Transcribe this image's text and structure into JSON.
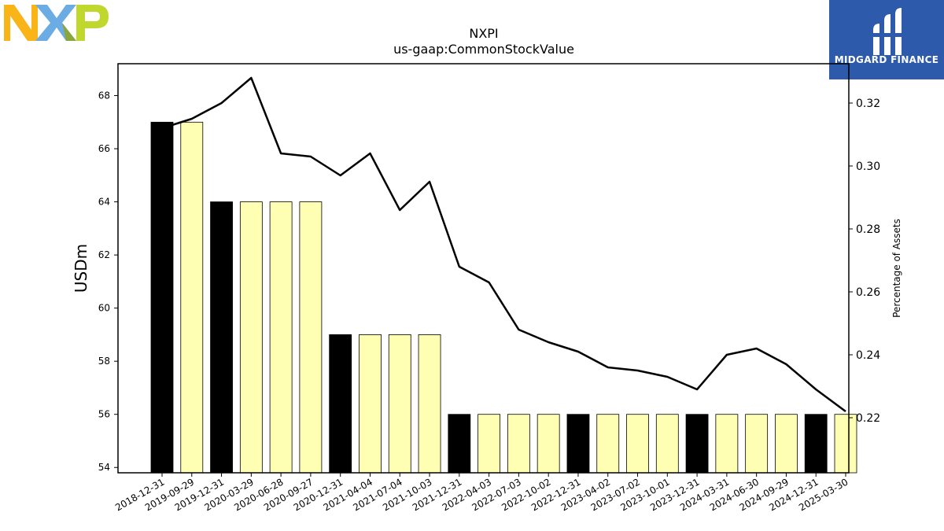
{
  "chart_data": {
    "type": "bar",
    "title": "NXPI",
    "subtitle": "us-gaap:CommonStockValue",
    "ylabel": "USDm",
    "y2label": "Percentage of Assets",
    "ylim": [
      53.8,
      69.2
    ],
    "y2lim": [
      0.2025,
      0.3325
    ],
    "yticks": [
      54,
      56,
      58,
      60,
      62,
      64,
      66,
      68
    ],
    "y2ticks": [
      0.22,
      0.24,
      0.26,
      0.28,
      0.3,
      0.32
    ],
    "categories": [
      "2018-12-31",
      "2019-09-29",
      "2019-12-31",
      "2020-03-29",
      "2020-06-28",
      "2020-09-27",
      "2020-12-31",
      "2021-04-04",
      "2021-07-04",
      "2021-10-03",
      "2021-12-31",
      "2022-04-03",
      "2022-07-03",
      "2022-10-02",
      "2022-12-31",
      "2023-04-02",
      "2023-07-02",
      "2023-10-01",
      "2023-12-31",
      "2024-03-31",
      "2024-06-30",
      "2024-09-29",
      "2024-12-31",
      "2025-03-30"
    ],
    "series": [
      {
        "kind": "bar",
        "values": [
          67,
          67,
          64,
          64,
          64,
          64,
          59,
          59,
          59,
          59,
          56,
          56,
          56,
          56,
          56,
          56,
          56,
          56,
          56,
          56,
          56,
          56,
          56,
          56
        ],
        "annual": [
          true,
          false,
          true,
          false,
          false,
          false,
          true,
          false,
          false,
          false,
          true,
          false,
          false,
          false,
          true,
          false,
          false,
          false,
          true,
          false,
          false,
          false,
          true,
          false
        ]
      },
      {
        "kind": "line",
        "axis": "right",
        "values": [
          0.312,
          0.315,
          0.32,
          0.328,
          0.304,
          0.303,
          0.297,
          0.304,
          0.286,
          0.295,
          0.268,
          0.263,
          0.248,
          0.244,
          0.241,
          0.236,
          0.235,
          0.233,
          0.229,
          0.24,
          0.242,
          0.237,
          0.229,
          0.222
        ]
      }
    ],
    "colors": {
      "annual_bar": "#000000",
      "quarter_bar": "#ffffb3",
      "line": "#000000"
    },
    "grid": false,
    "legend": "none"
  },
  "logos": {
    "left": {
      "name": "nxp-logo",
      "text": "NXP",
      "colors": [
        "#f9b418",
        "#6cace4",
        "#c0d72d"
      ]
    },
    "right": {
      "name": "midgard-finance-logo",
      "text": "MIDGARD FINANCE",
      "bg": "#2e5aac"
    }
  }
}
